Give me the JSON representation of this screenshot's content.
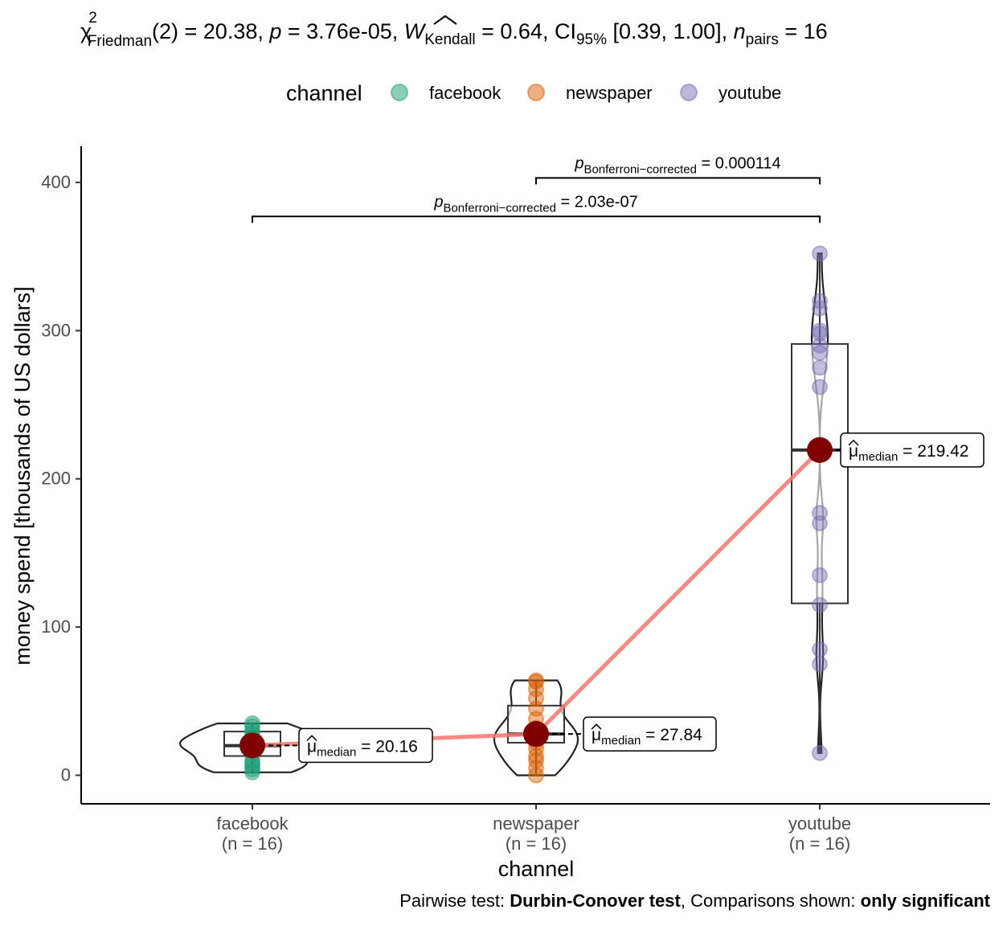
{
  "subtitle": {
    "chi": "χ",
    "chi_sup": "2",
    "chi_sub": "Friedman",
    "df": "(2) = 20.38, ",
    "p_sym": "p",
    "p_val": " = 3.76e-05, ",
    "w_sym": "W",
    "w_sub": "Kendall",
    "w_val": " = 0.64, CI",
    "ci_sub": "95%",
    "ci_val": " [0.39, 1.00], ",
    "n_sym": "n",
    "n_sub": "pairs",
    "n_val": " = 16"
  },
  "legend": {
    "title": "channel",
    "items": [
      {
        "label": "facebook",
        "color": "#1B9E77"
      },
      {
        "label": "newspaper",
        "color": "#D95F02"
      },
      {
        "label": "youtube",
        "color": "#7570B3"
      }
    ]
  },
  "caption": {
    "pre": "Pairwise test: ",
    "test": "Durbin-Conover test",
    "mid": ", Comparisons shown: ",
    "shown": "only significant"
  },
  "chart_data": {
    "type": "violin-box-scatter",
    "xlabel": "channel",
    "ylabel": "money spend [thousands of US dollars]",
    "ylim": [
      -20,
      425
    ],
    "yticks": [
      0,
      100,
      200,
      300,
      400
    ],
    "grid": false,
    "legend_position": "top",
    "categories": [
      "facebook",
      "newspaper",
      "youtube"
    ],
    "category_counts": [
      "(n = 16)",
      "(n = 16)",
      "(n = 16)"
    ],
    "groups": [
      {
        "name": "facebook",
        "color": "#1B9E77",
        "points": [
          2,
          4,
          6,
          8,
          10,
          14,
          17,
          20,
          20.5,
          21,
          22,
          25,
          28,
          30,
          33,
          35
        ],
        "box": {
          "q1": 13,
          "median": 20,
          "q3": 29.5,
          "whisker_low": 2,
          "whisker_high": 35
        },
        "median_label_value": "20.16",
        "median": 20.16
      },
      {
        "name": "newspaper",
        "color": "#D95F02",
        "points": [
          0,
          5,
          10,
          13,
          18,
          22,
          25,
          27,
          29,
          32,
          38,
          45,
          52,
          58,
          63,
          64
        ],
        "box": {
          "q1": 22,
          "median": 27.84,
          "q3": 47,
          "whisker_low": 0,
          "whisker_high": 64
        },
        "median_label_value": "27.84",
        "median": 27.84
      },
      {
        "name": "youtube",
        "color": "#7570B3",
        "points": [
          15,
          75,
          85,
          115,
          135,
          170,
          177,
          262,
          275,
          285,
          290,
          298,
          300,
          315,
          320,
          352
        ],
        "box": {
          "q1": 116,
          "median": 219.42,
          "q3": 291,
          "whisker_low": 15,
          "whisker_high": 352
        },
        "median_label_value": "219.42",
        "median": 219.42
      }
    ],
    "medians_line_color": "#F8766D",
    "median_point_color": "#800000",
    "median_label": {
      "sym": "μ",
      "sub": "median",
      "eq": " = "
    },
    "comparisons": [
      {
        "from": "newspaper",
        "to": "youtube",
        "y": 403,
        "p_sym": "p",
        "p_sub": "Bonferroni−corrected",
        "p_val": " = 0.000114"
      },
      {
        "from": "facebook",
        "to": "youtube",
        "y": 377,
        "p_sym": "p",
        "p_sub": "Bonferroni−corrected",
        "p_val": " = 2.03e-07"
      }
    ]
  }
}
